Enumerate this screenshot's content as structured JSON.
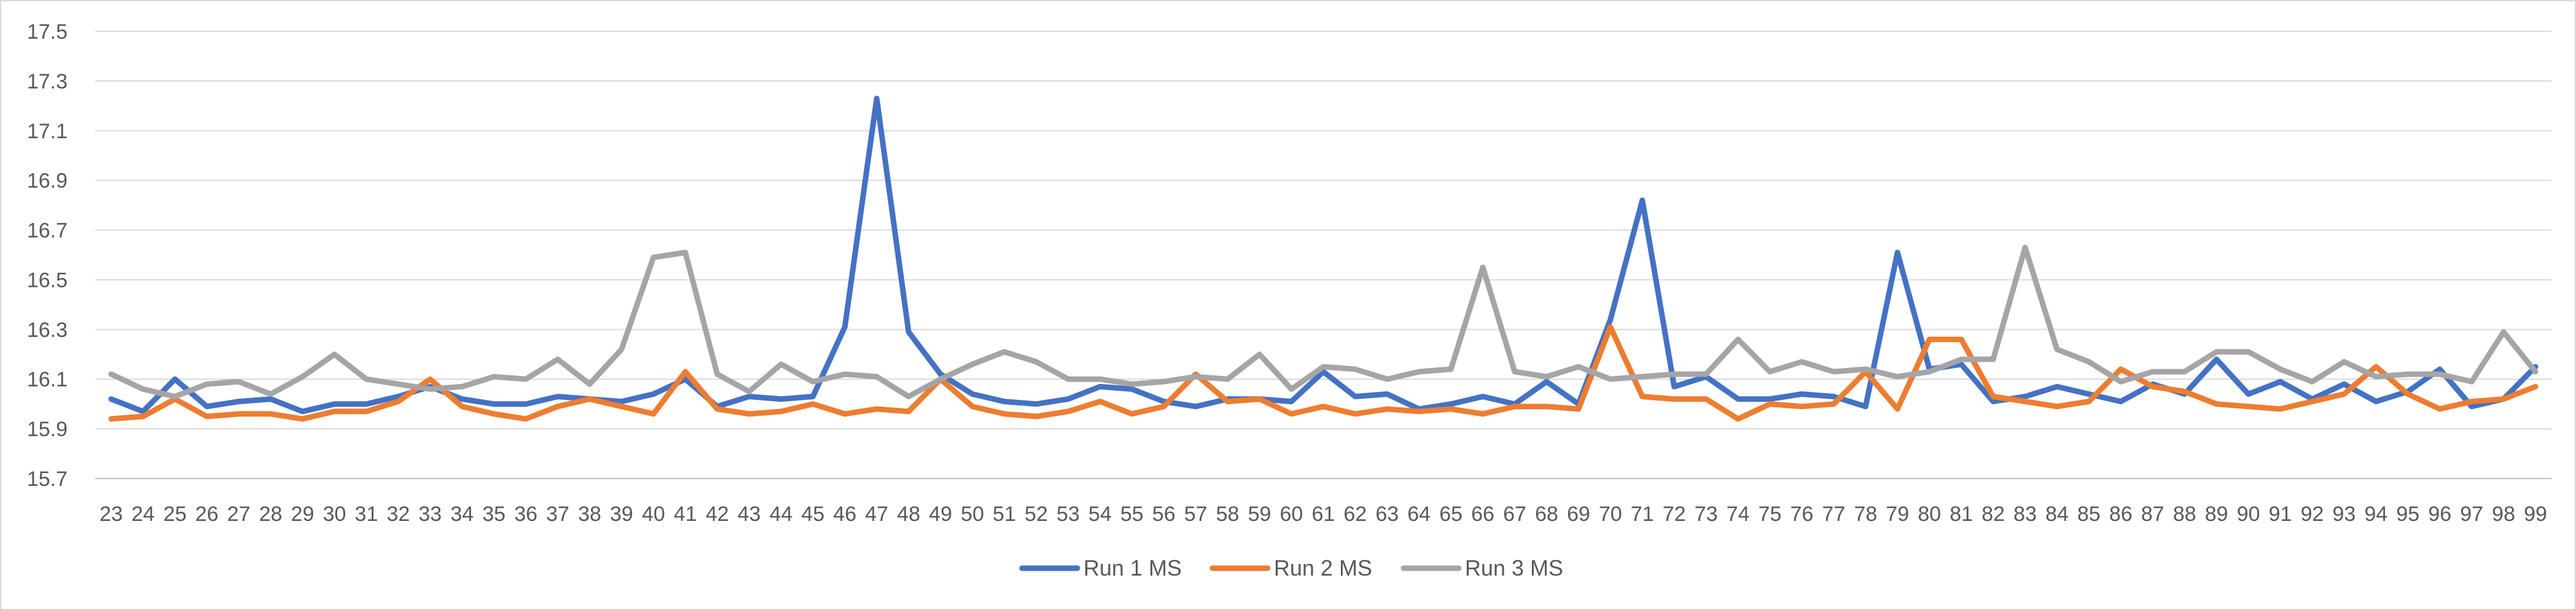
{
  "chart_data": {
    "type": "line",
    "title": "",
    "xlabel": "",
    "ylabel": "",
    "ylim": [
      15.7,
      17.5
    ],
    "yticks": [
      "17.5",
      "17.3",
      "17.1",
      "16.9",
      "16.7",
      "16.5",
      "16.3",
      "16.1",
      "15.9",
      "15.7"
    ],
    "grid": "horizontal",
    "legend": "bottom",
    "x": [
      "23",
      "24",
      "25",
      "26",
      "27",
      "28",
      "29",
      "30",
      "31",
      "32",
      "33",
      "34",
      "35",
      "36",
      "37",
      "38",
      "39",
      "40",
      "41",
      "42",
      "43",
      "44",
      "45",
      "46",
      "47",
      "48",
      "49",
      "50",
      "51",
      "52",
      "53",
      "54",
      "55",
      "56",
      "57",
      "58",
      "59",
      "60",
      "61",
      "62",
      "63",
      "64",
      "65",
      "66",
      "67",
      "68",
      "69",
      "70",
      "71",
      "72",
      "73",
      "74",
      "75",
      "76",
      "77",
      "78",
      "79",
      "80",
      "81",
      "82",
      "83",
      "84",
      "85",
      "86",
      "87",
      "88",
      "89",
      "90",
      "91",
      "92",
      "93",
      "94",
      "95",
      "96",
      "97",
      "98",
      "99"
    ],
    "series": [
      {
        "name": "Run 1 MS",
        "color": "#4472c4",
        "values": [
          16.02,
          15.97,
          16.1,
          15.99,
          16.01,
          16.02,
          15.97,
          16.0,
          16.0,
          16.03,
          16.07,
          16.02,
          16.0,
          16.0,
          16.03,
          16.02,
          16.01,
          16.04,
          16.1,
          15.99,
          16.03,
          16.02,
          16.03,
          16.31,
          17.23,
          16.29,
          16.12,
          16.04,
          16.01,
          16.0,
          16.02,
          16.07,
          16.06,
          16.01,
          15.99,
          16.02,
          16.02,
          16.01,
          16.13,
          16.03,
          16.04,
          15.98,
          16.0,
          16.03,
          16.0,
          16.09,
          16.0,
          16.34,
          16.82,
          16.07,
          16.11,
          16.02,
          16.02,
          16.04,
          16.03,
          15.99,
          16.61,
          16.14,
          16.16,
          16.01,
          16.03,
          16.07,
          16.04,
          16.01,
          16.08,
          16.04,
          16.18,
          16.04,
          16.09,
          16.02,
          16.08,
          16.01,
          16.05,
          16.14,
          15.99,
          16.02,
          16.15
        ]
      },
      {
        "name": "Run 2 MS",
        "color": "#ed7d31",
        "values": [
          15.94,
          15.95,
          16.02,
          15.95,
          15.96,
          15.96,
          15.94,
          15.97,
          15.97,
          16.01,
          16.1,
          15.99,
          15.96,
          15.94,
          15.99,
          16.02,
          15.99,
          15.96,
          16.13,
          15.98,
          15.96,
          15.97,
          16.0,
          15.96,
          15.98,
          15.97,
          16.1,
          15.99,
          15.96,
          15.95,
          15.97,
          16.01,
          15.96,
          15.99,
          16.12,
          16.01,
          16.02,
          15.96,
          15.99,
          15.96,
          15.98,
          15.97,
          15.98,
          15.96,
          15.99,
          15.99,
          15.98,
          16.31,
          16.03,
          16.02,
          16.02,
          15.94,
          16.0,
          15.99,
          16.0,
          16.13,
          15.98,
          16.26,
          16.26,
          16.03,
          16.01,
          15.99,
          16.01,
          16.14,
          16.07,
          16.05,
          16.0,
          15.99,
          15.98,
          16.01,
          16.04,
          16.15,
          16.04,
          15.98,
          16.01,
          16.02,
          16.07
        ]
      },
      {
        "name": "Run 3 MS",
        "color": "#a5a5a5",
        "values": [
          16.12,
          16.06,
          16.03,
          16.08,
          16.09,
          16.04,
          16.11,
          16.2,
          16.1,
          16.08,
          16.06,
          16.07,
          16.11,
          16.1,
          16.18,
          16.08,
          16.22,
          16.59,
          16.61,
          16.12,
          16.05,
          16.16,
          16.09,
          16.12,
          16.11,
          16.03,
          16.1,
          16.16,
          16.21,
          16.17,
          16.1,
          16.1,
          16.08,
          16.09,
          16.11,
          16.1,
          16.2,
          16.06,
          16.15,
          16.14,
          16.1,
          16.13,
          16.14,
          16.55,
          16.13,
          16.11,
          16.15,
          16.1,
          16.11,
          16.12,
          16.12,
          16.26,
          16.13,
          16.17,
          16.13,
          16.14,
          16.11,
          16.13,
          16.18,
          16.18,
          16.63,
          16.22,
          16.17,
          16.09,
          16.13,
          16.13,
          16.21,
          16.21,
          16.14,
          16.09,
          16.17,
          16.11,
          16.12,
          16.12,
          16.09,
          16.29,
          16.13
        ]
      }
    ]
  }
}
